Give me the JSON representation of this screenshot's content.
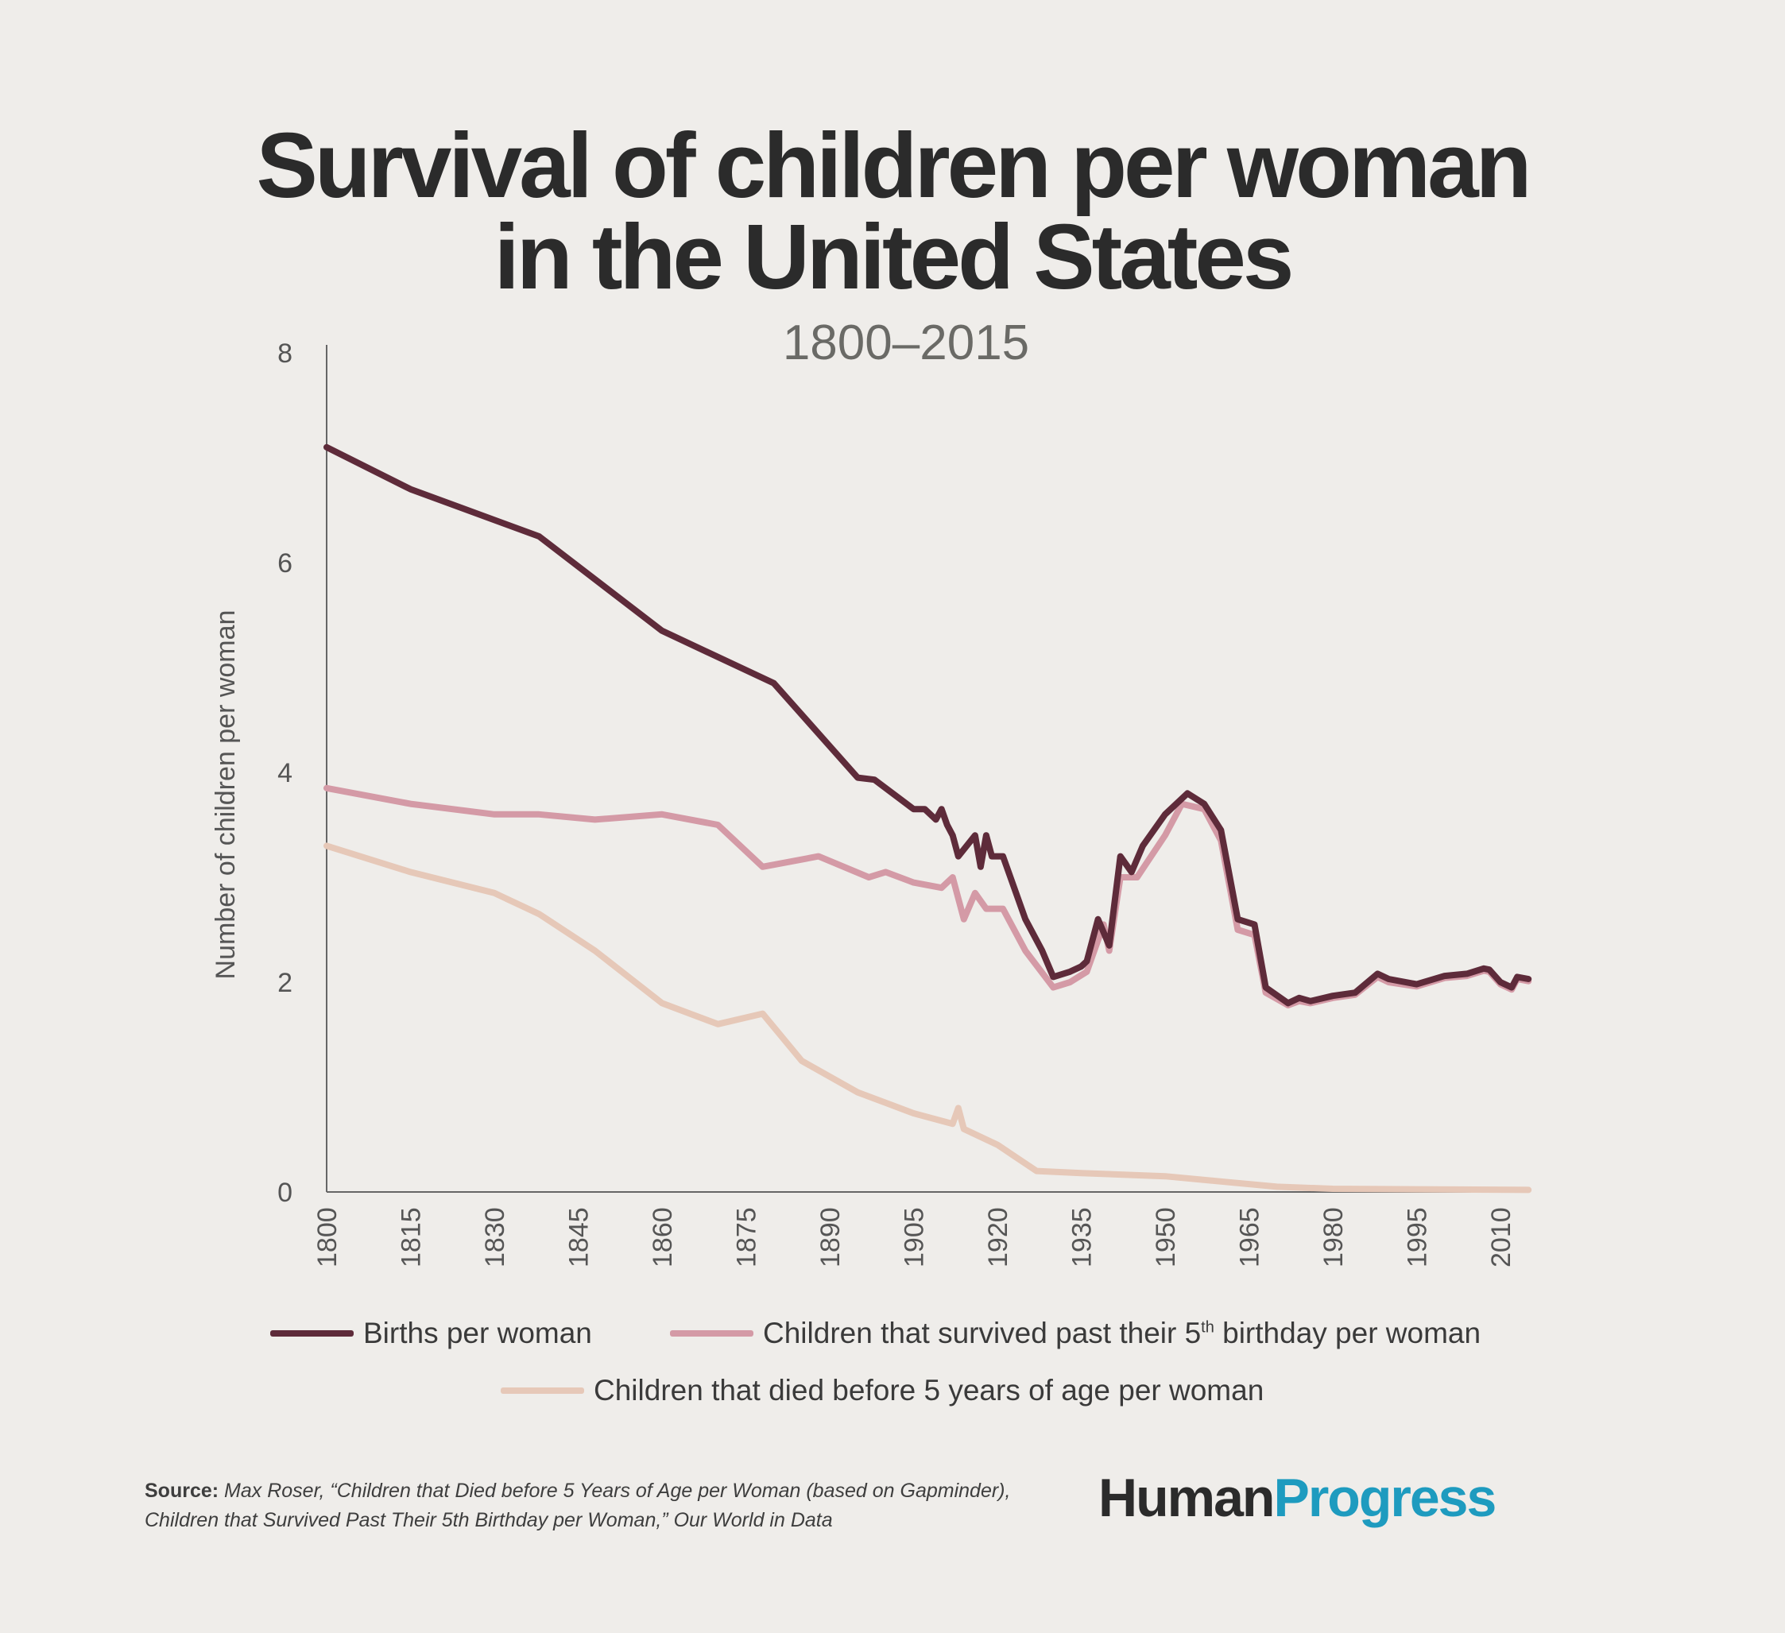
{
  "title_line1": "Survival of children per woman",
  "title_line2": "in the United States",
  "subtitle": "1800–2015",
  "source_label": "Source:",
  "source_line1": "Max Roser, “Children that Died before 5 Years of Age per Woman (based on Gapminder),",
  "source_line2": "Children that Survived Past Their 5th Birthday per Woman,” Our World in Data",
  "logo": {
    "part1": "Human",
    "part2": "Progress",
    "color1": "#2b2b2b",
    "color2": "#1e9bbf"
  },
  "legend": {
    "births": "Births per woman",
    "survived_pre": "Children that survived past their 5",
    "survived_sup": "th",
    "survived_post": " birthday per woman",
    "died": "Children that died before 5 years of age per woman"
  },
  "chart_data": {
    "type": "line",
    "title": "Survival of children per woman in the United States",
    "subtitle": "1800–2015",
    "xlabel": "",
    "ylabel": "Number of children per woman",
    "xlim": [
      1800,
      2015
    ],
    "ylim": [
      0,
      8
    ],
    "xticks": [
      "1800",
      "1815",
      "1830",
      "1845",
      "1860",
      "1875",
      "1890",
      "1905",
      "1920",
      "1935",
      "1950",
      "1965",
      "1980",
      "1995",
      "2010"
    ],
    "yticks": [
      "0",
      "2",
      "4",
      "6",
      "8"
    ],
    "grid": false,
    "legend_position": "bottom",
    "series": [
      {
        "name": "Births per woman",
        "color": "#5e2b3a",
        "x": [
          1800,
          1815,
          1838,
          1860,
          1880,
          1895,
          1898,
          1905,
          1907,
          1909,
          1910,
          1911,
          1912,
          1913,
          1916,
          1917,
          1918,
          1919,
          1921,
          1925,
          1928,
          1930,
          1933,
          1935,
          1936,
          1938,
          1940,
          1942,
          1944,
          1946,
          1950,
          1954,
          1957,
          1960,
          1963,
          1966,
          1968,
          1972,
          1974,
          1976,
          1980,
          1984,
          1988,
          1990,
          1995,
          2000,
          2004,
          2007,
          2008,
          2010,
          2012,
          2013,
          2015
        ],
        "y": [
          7.1,
          6.7,
          6.25,
          5.35,
          4.85,
          3.95,
          3.93,
          3.65,
          3.65,
          3.55,
          3.65,
          3.5,
          3.4,
          3.2,
          3.4,
          3.1,
          3.4,
          3.2,
          3.2,
          2.6,
          2.3,
          2.05,
          2.1,
          2.15,
          2.2,
          2.6,
          2.35,
          3.2,
          3.05,
          3.3,
          3.6,
          3.8,
          3.7,
          3.45,
          2.6,
          2.55,
          1.95,
          1.8,
          1.85,
          1.82,
          1.87,
          1.9,
          2.08,
          2.03,
          1.98,
          2.06,
          2.08,
          2.13,
          2.12,
          2.0,
          1.95,
          2.05,
          2.03
        ]
      },
      {
        "name": "Children that survived past their 5th birthday per woman",
        "color": "#d49aa6",
        "x": [
          1800,
          1815,
          1830,
          1838,
          1848,
          1860,
          1870,
          1878,
          1888,
          1897,
          1900,
          1905,
          1910,
          1912,
          1914,
          1916,
          1918,
          1921,
          1925,
          1930,
          1933,
          1936,
          1939,
          1940,
          1942,
          1945,
          1950,
          1953,
          1957,
          1960,
          1963,
          1966,
          1968,
          1972,
          1974,
          1976,
          1980,
          1984,
          1988,
          1990,
          1995,
          2000,
          2004,
          2007,
          2008,
          2010,
          2012,
          2013,
          2015
        ],
        "y": [
          3.85,
          3.7,
          3.6,
          3.6,
          3.55,
          3.6,
          3.5,
          3.1,
          3.2,
          3.0,
          3.05,
          2.95,
          2.9,
          3.0,
          2.6,
          2.85,
          2.7,
          2.7,
          2.3,
          1.95,
          2.0,
          2.1,
          2.55,
          2.3,
          3.0,
          3.0,
          3.4,
          3.7,
          3.65,
          3.35,
          2.5,
          2.45,
          1.9,
          1.78,
          1.82,
          1.8,
          1.85,
          1.88,
          2.05,
          2.0,
          1.96,
          2.04,
          2.06,
          2.11,
          2.1,
          1.98,
          1.93,
          2.03,
          2.01
        ]
      },
      {
        "name": "Children that died before 5 years of age per woman",
        "color": "#e6c8b8",
        "x": [
          1800,
          1815,
          1830,
          1838,
          1848,
          1860,
          1870,
          1878,
          1885,
          1895,
          1900,
          1905,
          1912,
          1913,
          1914,
          1920,
          1927,
          1935,
          1950,
          1960,
          1970,
          1980,
          2015
        ],
        "y": [
          3.3,
          3.05,
          2.85,
          2.65,
          2.3,
          1.8,
          1.6,
          1.7,
          1.25,
          0.95,
          0.85,
          0.75,
          0.65,
          0.8,
          0.6,
          0.45,
          0.2,
          0.18,
          0.15,
          0.1,
          0.05,
          0.03,
          0.02
        ]
      }
    ]
  }
}
